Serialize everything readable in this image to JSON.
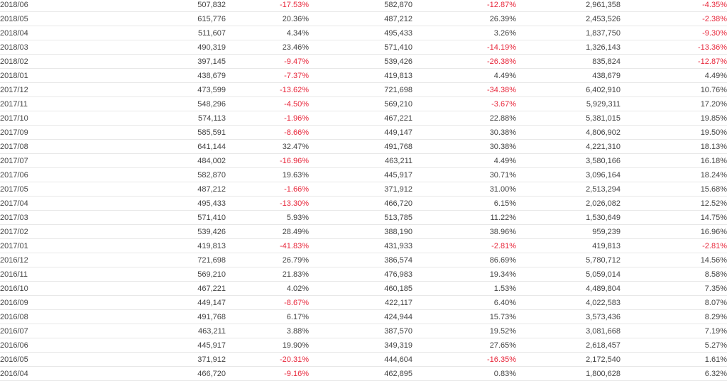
{
  "colors": {
    "negative": "#e8283c",
    "text": "#444444",
    "row_border": "#e8e8e8"
  },
  "rows": [
    {
      "month": "2018/06",
      "v1": "507,832",
      "p1": "-17.53%",
      "v2": "582,870",
      "p2": "-12.87%",
      "v3": "2,961,358",
      "p3": "-4.35%"
    },
    {
      "month": "2018/05",
      "v1": "615,776",
      "p1": "20.36%",
      "v2": "487,212",
      "p2": "26.39%",
      "v3": "2,453,526",
      "p3": "-2.38%"
    },
    {
      "month": "2018/04",
      "v1": "511,607",
      "p1": "4.34%",
      "v2": "495,433",
      "p2": "3.26%",
      "v3": "1,837,750",
      "p3": "-9.30%"
    },
    {
      "month": "2018/03",
      "v1": "490,319",
      "p1": "23.46%",
      "v2": "571,410",
      "p2": "-14.19%",
      "v3": "1,326,143",
      "p3": "-13.36%"
    },
    {
      "month": "2018/02",
      "v1": "397,145",
      "p1": "-9.47%",
      "v2": "539,426",
      "p2": "-26.38%",
      "v3": "835,824",
      "p3": "-12.87%"
    },
    {
      "month": "2018/01",
      "v1": "438,679",
      "p1": "-7.37%",
      "v2": "419,813",
      "p2": "4.49%",
      "v3": "438,679",
      "p3": "4.49%"
    },
    {
      "month": "2017/12",
      "v1": "473,599",
      "p1": "-13.62%",
      "v2": "721,698",
      "p2": "-34.38%",
      "v3": "6,402,910",
      "p3": "10.76%"
    },
    {
      "month": "2017/11",
      "v1": "548,296",
      "p1": "-4.50%",
      "v2": "569,210",
      "p2": "-3.67%",
      "v3": "5,929,311",
      "p3": "17.20%"
    },
    {
      "month": "2017/10",
      "v1": "574,113",
      "p1": "-1.96%",
      "v2": "467,221",
      "p2": "22.88%",
      "v3": "5,381,015",
      "p3": "19.85%"
    },
    {
      "month": "2017/09",
      "v1": "585,591",
      "p1": "-8.66%",
      "v2": "449,147",
      "p2": "30.38%",
      "v3": "4,806,902",
      "p3": "19.50%"
    },
    {
      "month": "2017/08",
      "v1": "641,144",
      "p1": "32.47%",
      "v2": "491,768",
      "p2": "30.38%",
      "v3": "4,221,310",
      "p3": "18.13%"
    },
    {
      "month": "2017/07",
      "v1": "484,002",
      "p1": "-16.96%",
      "v2": "463,211",
      "p2": "4.49%",
      "v3": "3,580,166",
      "p3": "16.18%"
    },
    {
      "month": "2017/06",
      "v1": "582,870",
      "p1": "19.63%",
      "v2": "445,917",
      "p2": "30.71%",
      "v3": "3,096,164",
      "p3": "18.24%"
    },
    {
      "month": "2017/05",
      "v1": "487,212",
      "p1": "-1.66%",
      "v2": "371,912",
      "p2": "31.00%",
      "v3": "2,513,294",
      "p3": "15.68%"
    },
    {
      "month": "2017/04",
      "v1": "495,433",
      "p1": "-13.30%",
      "v2": "466,720",
      "p2": "6.15%",
      "v3": "2,026,082",
      "p3": "12.52%"
    },
    {
      "month": "2017/03",
      "v1": "571,410",
      "p1": "5.93%",
      "v2": "513,785",
      "p2": "11.22%",
      "v3": "1,530,649",
      "p3": "14.75%"
    },
    {
      "month": "2017/02",
      "v1": "539,426",
      "p1": "28.49%",
      "v2": "388,190",
      "p2": "38.96%",
      "v3": "959,239",
      "p3": "16.96%"
    },
    {
      "month": "2017/01",
      "v1": "419,813",
      "p1": "-41.83%",
      "v2": "431,933",
      "p2": "-2.81%",
      "v3": "419,813",
      "p3": "-2.81%"
    },
    {
      "month": "2016/12",
      "v1": "721,698",
      "p1": "26.79%",
      "v2": "386,574",
      "p2": "86.69%",
      "v3": "5,780,712",
      "p3": "14.56%"
    },
    {
      "month": "2016/11",
      "v1": "569,210",
      "p1": "21.83%",
      "v2": "476,983",
      "p2": "19.34%",
      "v3": "5,059,014",
      "p3": "8.58%"
    },
    {
      "month": "2016/10",
      "v1": "467,221",
      "p1": "4.02%",
      "v2": "460,185",
      "p2": "1.53%",
      "v3": "4,489,804",
      "p3": "7.35%"
    },
    {
      "month": "2016/09",
      "v1": "449,147",
      "p1": "-8.67%",
      "v2": "422,117",
      "p2": "6.40%",
      "v3": "4,022,583",
      "p3": "8.07%"
    },
    {
      "month": "2016/08",
      "v1": "491,768",
      "p1": "6.17%",
      "v2": "424,944",
      "p2": "15.73%",
      "v3": "3,573,436",
      "p3": "8.29%"
    },
    {
      "month": "2016/07",
      "v1": "463,211",
      "p1": "3.88%",
      "v2": "387,570",
      "p2": "19.52%",
      "v3": "3,081,668",
      "p3": "7.19%"
    },
    {
      "month": "2016/06",
      "v1": "445,917",
      "p1": "19.90%",
      "v2": "349,319",
      "p2": "27.65%",
      "v3": "2,618,457",
      "p3": "5.27%"
    },
    {
      "month": "2016/05",
      "v1": "371,912",
      "p1": "-20.31%",
      "v2": "444,604",
      "p2": "-16.35%",
      "v3": "2,172,540",
      "p3": "1.61%"
    },
    {
      "month": "2016/04",
      "v1": "466,720",
      "p1": "-9.16%",
      "v2": "462,895",
      "p2": "0.83%",
      "v3": "1,800,628",
      "p3": "6.32%"
    }
  ]
}
